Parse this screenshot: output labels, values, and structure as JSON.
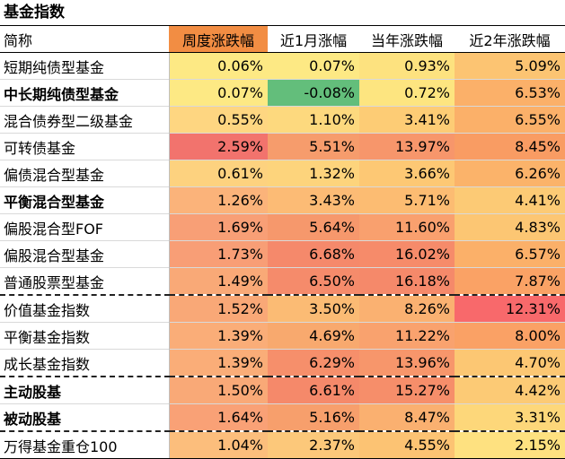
{
  "title": "基金指数",
  "columns": {
    "name": "简称",
    "week": "周度涨跌幅",
    "month": "近1月涨幅",
    "ytd": "当年涨跌幅",
    "two_year": "近2年涨跌幅"
  },
  "header_colors": {
    "week": "#f28d43"
  },
  "rows": [
    {
      "name": "短期纯债型基金",
      "bold": false,
      "week": "0.06%",
      "month": "0.07%",
      "ytd": "0.93%",
      "two_year": "5.09%",
      "colors": [
        "#fde984",
        "#fde984",
        "#fde27f",
        "#fcc472"
      ]
    },
    {
      "name": "中长期纯债型基金",
      "bold": true,
      "week": "0.07%",
      "month": "-0.08%",
      "ytd": "0.72%",
      "two_year": "6.53%",
      "colors": [
        "#fde984",
        "#63be7b",
        "#fde580",
        "#fbb069"
      ]
    },
    {
      "name": "混合债券型二级基金",
      "bold": false,
      "week": "0.55%",
      "month": "1.10%",
      "ytd": "3.41%",
      "two_year": "6.55%",
      "colors": [
        "#fed681",
        "#fdd97e",
        "#fdcc75",
        "#fbb069"
      ]
    },
    {
      "name": "可转债基金",
      "bold": false,
      "week": "2.59%",
      "month": "5.51%",
      "ytd": "13.97%",
      "two_year": "8.45%",
      "colors": [
        "#f2736d",
        "#f69c6c",
        "#f7966b",
        "#f99c63"
      ]
    },
    {
      "name": "偏债混合型基金",
      "bold": false,
      "week": "0.61%",
      "month": "1.32%",
      "ytd": "3.66%",
      "two_year": "6.26%",
      "colors": [
        "#fdd27f",
        "#fdd47c",
        "#fdc874",
        "#fbb36a"
      ]
    },
    {
      "name": "平衡混合型基金",
      "bold": true,
      "week": "1.26%",
      "month": "3.43%",
      "ytd": "5.71%",
      "two_year": "4.41%",
      "colors": [
        "#fbb37a",
        "#fcbb75",
        "#fcbc72",
        "#fcca75"
      ]
    },
    {
      "name": "偏股混合型FOF",
      "bold": false,
      "week": "1.69%",
      "month": "5.64%",
      "ytd": "11.60%",
      "two_year": "4.83%",
      "colors": [
        "#f89f76",
        "#f6986c",
        "#f9a06e",
        "#fcc673"
      ]
    },
    {
      "name": "偏股混合型基金",
      "bold": false,
      "week": "1.73%",
      "month": "6.68%",
      "ytd": "16.02%",
      "two_year": "6.57%",
      "colors": [
        "#f89e76",
        "#f5896b",
        "#f68b6a",
        "#fbb069"
      ]
    },
    {
      "name": "普通股票型基金",
      "bold": false,
      "week": "1.49%",
      "month": "6.50%",
      "ytd": "16.18%",
      "two_year": "7.87%",
      "colors": [
        "#f9a977",
        "#f58b6b",
        "#f5896a",
        "#faa265"
      ]
    },
    {
      "name": "价值基金指数",
      "bold": false,
      "week": "1.52%",
      "month": "3.50%",
      "ytd": "8.26%",
      "two_year": "12.31%",
      "colors": [
        "#f9a877",
        "#fbbb74",
        "#fab171",
        "#f8696b"
      ],
      "dash_top": true
    },
    {
      "name": "平衡基金指数",
      "bold": false,
      "week": "1.39%",
      "month": "4.69%",
      "ytd": "11.22%",
      "two_year": "8.00%",
      "colors": [
        "#faad78",
        "#f8a96e",
        "#f9a26e",
        "#faa165"
      ]
    },
    {
      "name": "成长基金指数",
      "bold": false,
      "week": "1.39%",
      "month": "6.29%",
      "ytd": "13.96%",
      "two_year": "4.70%",
      "colors": [
        "#faad78",
        "#f68f6b",
        "#f7966b",
        "#fcc773"
      ]
    },
    {
      "name": "主动股基",
      "bold": true,
      "week": "1.50%",
      "month": "6.61%",
      "ytd": "15.27%",
      "two_year": "4.42%",
      "colors": [
        "#f9a977",
        "#f5896a",
        "#f68e6a",
        "#fcca75"
      ],
      "dash_top": true
    },
    {
      "name": "被动股基",
      "bold": true,
      "week": "1.64%",
      "month": "5.16%",
      "ytd": "8.47%",
      "two_year": "3.31%",
      "colors": [
        "#f9a176",
        "#f79f6c",
        "#fab070",
        "#fdd77a"
      ]
    },
    {
      "name": "万得基金重仓100",
      "bold": false,
      "week": "1.04%",
      "month": "2.37%",
      "ytd": "4.55%",
      "two_year": "2.15%",
      "colors": [
        "#fcbe7c",
        "#fcc87a",
        "#fcc373",
        "#fee180"
      ],
      "dash_top": true
    }
  ]
}
